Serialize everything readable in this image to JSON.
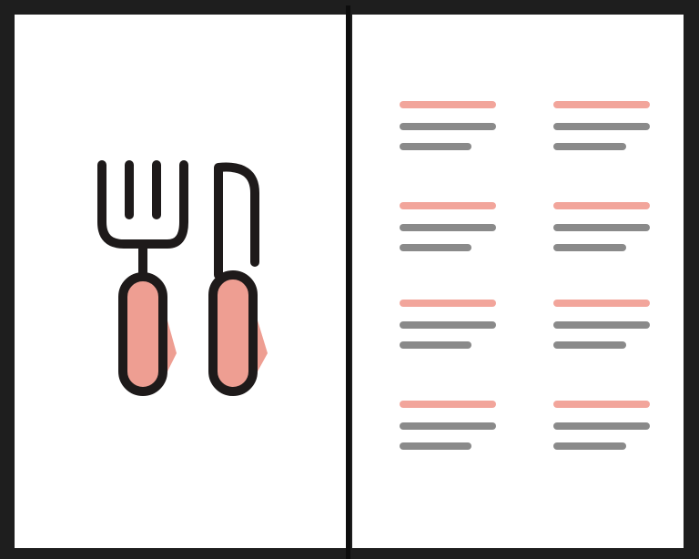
{
  "menu": {
    "icon": "fork-and-knife-icon",
    "colors": {
      "frame": "#1e1e1e",
      "page": "#ffffff",
      "outline": "#1e1a1a",
      "handle": "#ee9e92",
      "title_bar": "#f2a59b",
      "text_bar": "#8a8a8a"
    },
    "items": [
      {},
      {},
      {},
      {},
      {},
      {},
      {},
      {}
    ]
  }
}
